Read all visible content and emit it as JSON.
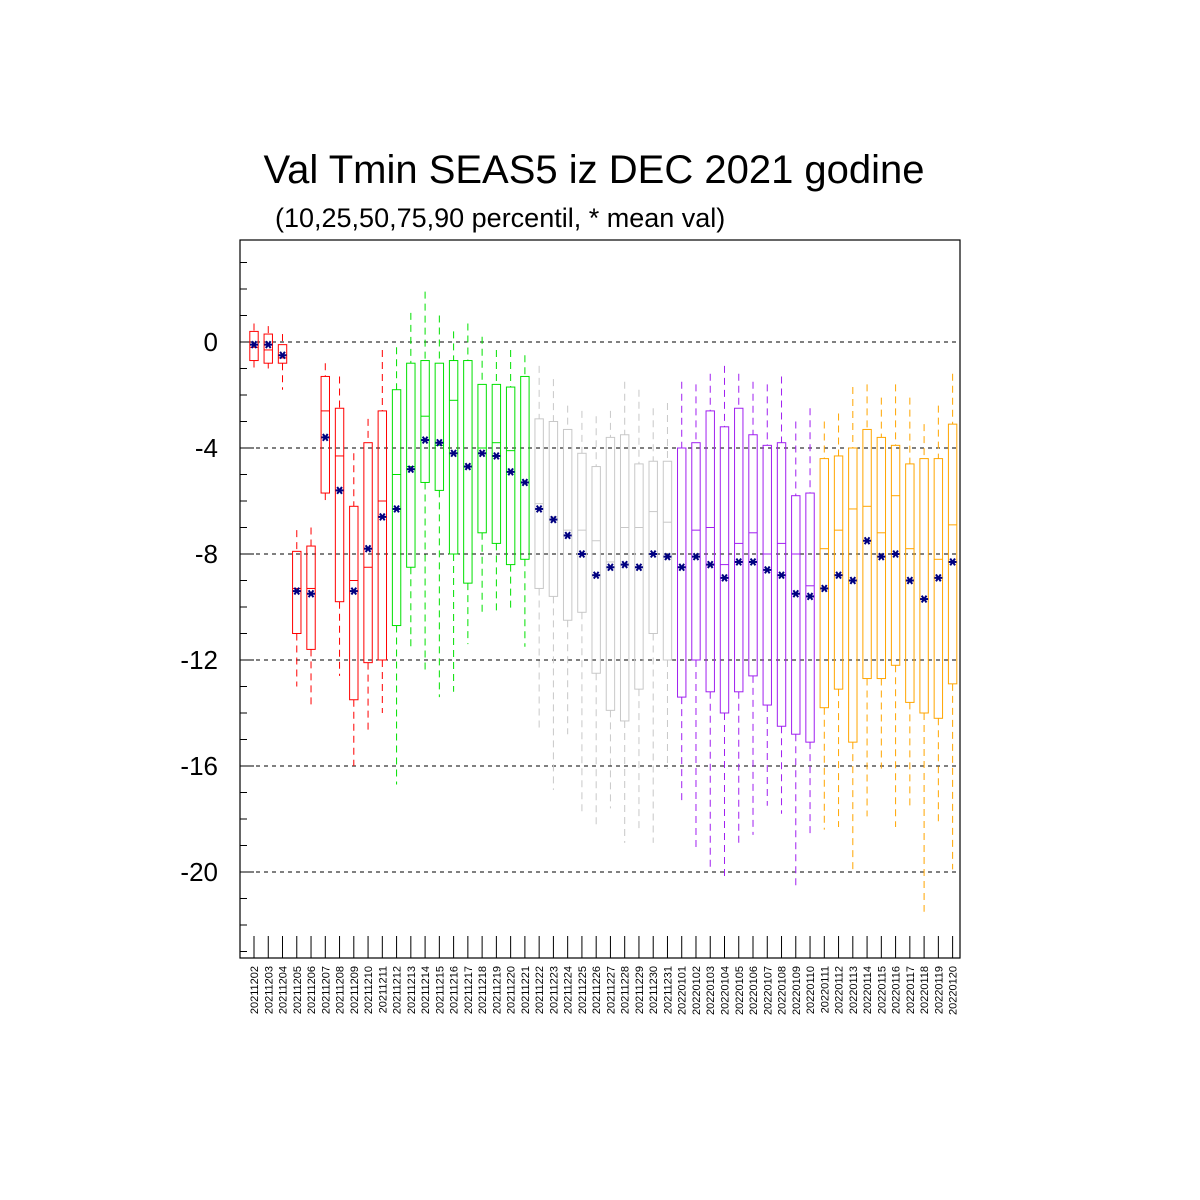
{
  "chart_data": {
    "type": "box",
    "title": "Val Tmin SEAS5 iz DEC 2021 godine",
    "subtitle": "(10,25,50,75,90 percentil, * mean val)",
    "ylim": [
      -23.3,
      3.9
    ],
    "yticks": [
      0,
      -4,
      -8,
      -12,
      -16,
      -20
    ],
    "ytick_labels": [
      "0",
      "-4",
      "-8",
      "-12",
      "-16",
      "-20"
    ],
    "grid": "dashed horizontal at major ticks",
    "colors": {
      "red": "#ff0000",
      "green": "#00e000",
      "gray": "#c8c8c8",
      "purple": "#a020f0",
      "orange": "#ffa500",
      "mean_marker": "#000080",
      "grid": "#000000"
    },
    "groups": [
      {
        "color": "red",
        "dates": [
          "20211202",
          "20211203",
          "20211204",
          "20211205",
          "20211206",
          "20211207",
          "20211208",
          "20211209",
          "20211210",
          "20211211"
        ]
      },
      {
        "color": "green",
        "dates": [
          "20211212",
          "20211213",
          "20211214",
          "20211215",
          "20211216",
          "20211217",
          "20211218",
          "20211219",
          "20211220",
          "20211221"
        ]
      },
      {
        "color": "gray",
        "dates": [
          "20211222",
          "20211223",
          "20211224",
          "20211225",
          "20211226",
          "20211227",
          "20211228",
          "20211229",
          "20211230",
          "20211231"
        ]
      },
      {
        "color": "purple",
        "dates": [
          "20220101",
          "20220102",
          "20220103",
          "20220104",
          "20220105",
          "20220106",
          "20220107",
          "20220108",
          "20220109",
          "20220110"
        ]
      },
      {
        "color": "orange",
        "dates": [
          "20220111",
          "20220112",
          "20220113",
          "20220114",
          "20220115",
          "20220116",
          "20220117",
          "20220118",
          "20220119",
          "20220120"
        ]
      }
    ],
    "series": [
      {
        "date": "20211202",
        "p10": -1.0,
        "p25": -0.7,
        "p50": -0.2,
        "p75": 0.4,
        "p90": 0.7,
        "mean": -0.1
      },
      {
        "date": "20211203",
        "p10": -1.0,
        "p25": -0.8,
        "p50": -0.3,
        "p75": 0.3,
        "p90": 0.6,
        "mean": -0.1
      },
      {
        "date": "20211204",
        "p10": -1.8,
        "p25": -0.8,
        "p50": -0.6,
        "p75": -0.1,
        "p90": 0.3,
        "mean": -0.5
      },
      {
        "date": "20211205",
        "p10": -13.0,
        "p25": -11.0,
        "p50": -9.3,
        "p75": -7.9,
        "p90": -7.1,
        "mean": -9.4
      },
      {
        "date": "20211206",
        "p10": -13.7,
        "p25": -11.6,
        "p50": -9.3,
        "p75": -7.7,
        "p90": -7.0,
        "mean": -9.5
      },
      {
        "date": "20211207",
        "p10": -6.0,
        "p25": -5.7,
        "p50": -2.6,
        "p75": -1.3,
        "p90": -0.8,
        "mean": -3.6
      },
      {
        "date": "20211208",
        "p10": -12.6,
        "p25": -9.8,
        "p50": -4.3,
        "p75": -2.5,
        "p90": -1.3,
        "mean": -5.6
      },
      {
        "date": "20211209",
        "p10": -16.0,
        "p25": -13.5,
        "p50": -9.0,
        "p75": -6.2,
        "p90": -4.2,
        "mean": -9.4
      },
      {
        "date": "20211210",
        "p10": -14.8,
        "p25": -12.1,
        "p50": -8.5,
        "p75": -3.8,
        "p90": -2.9,
        "mean": -7.8
      },
      {
        "date": "20211211",
        "p10": -14.0,
        "p25": -12.0,
        "p50": -6.0,
        "p75": -2.6,
        "p90": -0.3,
        "mean": -6.6
      },
      {
        "date": "20211212",
        "p10": -16.7,
        "p25": -10.7,
        "p50": -5.0,
        "p75": -1.8,
        "p90": -0.2,
        "mean": -6.3
      },
      {
        "date": "20211213",
        "p10": -11.6,
        "p25": -8.5,
        "p50": -4.7,
        "p75": -0.8,
        "p90": 1.1,
        "mean": -4.8
      },
      {
        "date": "20211214",
        "p10": -12.4,
        "p25": -5.3,
        "p50": -2.8,
        "p75": -0.7,
        "p90": 1.9,
        "mean": -3.7
      },
      {
        "date": "20211215",
        "p10": -13.4,
        "p25": -5.6,
        "p50": -3.9,
        "p75": -0.8,
        "p90": 1.0,
        "mean": -3.8
      },
      {
        "date": "20211216",
        "p10": -13.2,
        "p25": -8.0,
        "p50": -2.2,
        "p75": -0.7,
        "p90": 0.4,
        "mean": -4.2
      },
      {
        "date": "20211217",
        "p10": -11.4,
        "p25": -9.1,
        "p50": -4.7,
        "p75": -0.7,
        "p90": 0.7,
        "mean": -4.7
      },
      {
        "date": "20211218",
        "p10": -10.3,
        "p25": -7.2,
        "p50": -4.0,
        "p75": -1.6,
        "p90": 0.2,
        "mean": -4.2
      },
      {
        "date": "20211219",
        "p10": -10.2,
        "p25": -7.6,
        "p50": -3.8,
        "p75": -1.6,
        "p90": -0.3,
        "mean": -4.3
      },
      {
        "date": "20211220",
        "p10": -10.2,
        "p25": -8.4,
        "p50": -4.1,
        "p75": -1.7,
        "p90": -0.3,
        "mean": -4.9
      },
      {
        "date": "20211221",
        "p10": -11.5,
        "p25": -8.2,
        "p50": -5.3,
        "p75": -1.3,
        "p90": -0.5,
        "mean": -5.3
      },
      {
        "date": "20211222",
        "p10": -14.7,
        "p25": -9.3,
        "p50": -6.1,
        "p75": -2.9,
        "p90": -0.9,
        "mean": -6.3
      },
      {
        "date": "20211223",
        "p10": -16.9,
        "p25": -9.6,
        "p50": -6.6,
        "p75": -3.0,
        "p90": -1.4,
        "mean": -6.7
      },
      {
        "date": "20211224",
        "p10": -14.8,
        "p25": -10.5,
        "p50": -7.1,
        "p75": -3.3,
        "p90": -2.4,
        "mean": -7.3
      },
      {
        "date": "20211225",
        "p10": -17.8,
        "p25": -10.2,
        "p50": -7.1,
        "p75": -4.2,
        "p90": -2.6,
        "mean": -8.0
      },
      {
        "date": "20211226",
        "p10": -18.2,
        "p25": -12.5,
        "p50": -7.5,
        "p75": -4.7,
        "p90": -2.8,
        "mean": -8.8
      },
      {
        "date": "20211227",
        "p10": -17.6,
        "p25": -13.9,
        "p50": -8.3,
        "p75": -3.6,
        "p90": -2.6,
        "mean": -8.5
      },
      {
        "date": "20211228",
        "p10": -18.9,
        "p25": -14.3,
        "p50": -7.0,
        "p75": -3.5,
        "p90": -1.5,
        "mean": -8.4
      },
      {
        "date": "20211229",
        "p10": -18.4,
        "p25": -13.1,
        "p50": -7.0,
        "p75": -4.6,
        "p90": -1.8,
        "mean": -8.5
      },
      {
        "date": "20211230",
        "p10": -18.9,
        "p25": -11.0,
        "p50": -6.4,
        "p75": -4.5,
        "p90": -2.5,
        "mean": -8.0
      },
      {
        "date": "20211231",
        "p10": -16.1,
        "p25": -12.0,
        "p50": -6.8,
        "p75": -4.5,
        "p90": -2.3,
        "mean": -8.1
      },
      {
        "date": "20220101",
        "p10": -17.3,
        "p25": -13.4,
        "p50": -8.5,
        "p75": -4.0,
        "p90": -1.5,
        "mean": -8.5
      },
      {
        "date": "20220102",
        "p10": -19.1,
        "p25": -12.0,
        "p50": -7.1,
        "p75": -3.8,
        "p90": -1.6,
        "mean": -8.1
      },
      {
        "date": "20220103",
        "p10": -19.8,
        "p25": -13.2,
        "p50": -7.0,
        "p75": -2.6,
        "p90": -1.2,
        "mean": -8.4
      },
      {
        "date": "20220104",
        "p10": -20.3,
        "p25": -14.0,
        "p50": -8.4,
        "p75": -3.2,
        "p90": -0.9,
        "mean": -8.9
      },
      {
        "date": "20220105",
        "p10": -19.0,
        "p25": -13.2,
        "p50": -7.6,
        "p75": -2.5,
        "p90": -1.2,
        "mean": -8.3
      },
      {
        "date": "20220106",
        "p10": -18.6,
        "p25": -12.6,
        "p50": -7.2,
        "p75": -3.5,
        "p90": -1.5,
        "mean": -8.3
      },
      {
        "date": "20220107",
        "p10": -17.5,
        "p25": -13.7,
        "p50": -8.0,
        "p75": -3.9,
        "p90": -1.6,
        "mean": -8.6
      },
      {
        "date": "20220108",
        "p10": -17.8,
        "p25": -14.5,
        "p50": -7.6,
        "p75": -3.8,
        "p90": -1.3,
        "mean": -8.8
      },
      {
        "date": "20220109",
        "p10": -20.5,
        "p25": -14.8,
        "p50": -8.0,
        "p75": -5.8,
        "p90": -3.0,
        "mean": -9.5
      },
      {
        "date": "20220110",
        "p10": -18.6,
        "p25": -15.1,
        "p50": -9.2,
        "p75": -5.7,
        "p90": -2.5,
        "mean": -9.6
      },
      {
        "date": "20220111",
        "p10": -18.4,
        "p25": -13.8,
        "p50": -7.8,
        "p75": -4.4,
        "p90": -3.0,
        "mean": -9.3
      },
      {
        "date": "20220112",
        "p10": -18.3,
        "p25": -13.1,
        "p50": -7.1,
        "p75": -4.3,
        "p90": -2.7,
        "mean": -8.8
      },
      {
        "date": "20220113",
        "p10": -20.0,
        "p25": -15.1,
        "p50": -6.3,
        "p75": -4.0,
        "p90": -1.7,
        "mean": -9.0
      },
      {
        "date": "20220114",
        "p10": -17.9,
        "p25": -12.7,
        "p50": -6.2,
        "p75": -3.3,
        "p90": -1.6,
        "mean": -7.5
      },
      {
        "date": "20220115",
        "p10": -16.1,
        "p25": -12.7,
        "p50": -7.2,
        "p75": -3.6,
        "p90": -2.1,
        "mean": -8.1
      },
      {
        "date": "20220116",
        "p10": -18.3,
        "p25": -12.2,
        "p50": -5.8,
        "p75": -3.9,
        "p90": -1.6,
        "mean": -8.0
      },
      {
        "date": "20220117",
        "p10": -17.5,
        "p25": -13.6,
        "p50": -7.8,
        "p75": -4.6,
        "p90": -2.1,
        "mean": -9.0
      },
      {
        "date": "20220118",
        "p10": -21.5,
        "p25": -14.0,
        "p50": -9.7,
        "p75": -4.4,
        "p90": -3.1,
        "mean": -9.7
      },
      {
        "date": "20220119",
        "p10": -18.1,
        "p25": -14.2,
        "p50": -8.2,
        "p75": -4.4,
        "p90": -2.4,
        "mean": -8.9
      },
      {
        "date": "20220120",
        "p10": -19.9,
        "p25": -12.9,
        "p50": -6.9,
        "p75": -3.1,
        "p90": -1.2,
        "mean": -8.3
      }
    ]
  }
}
